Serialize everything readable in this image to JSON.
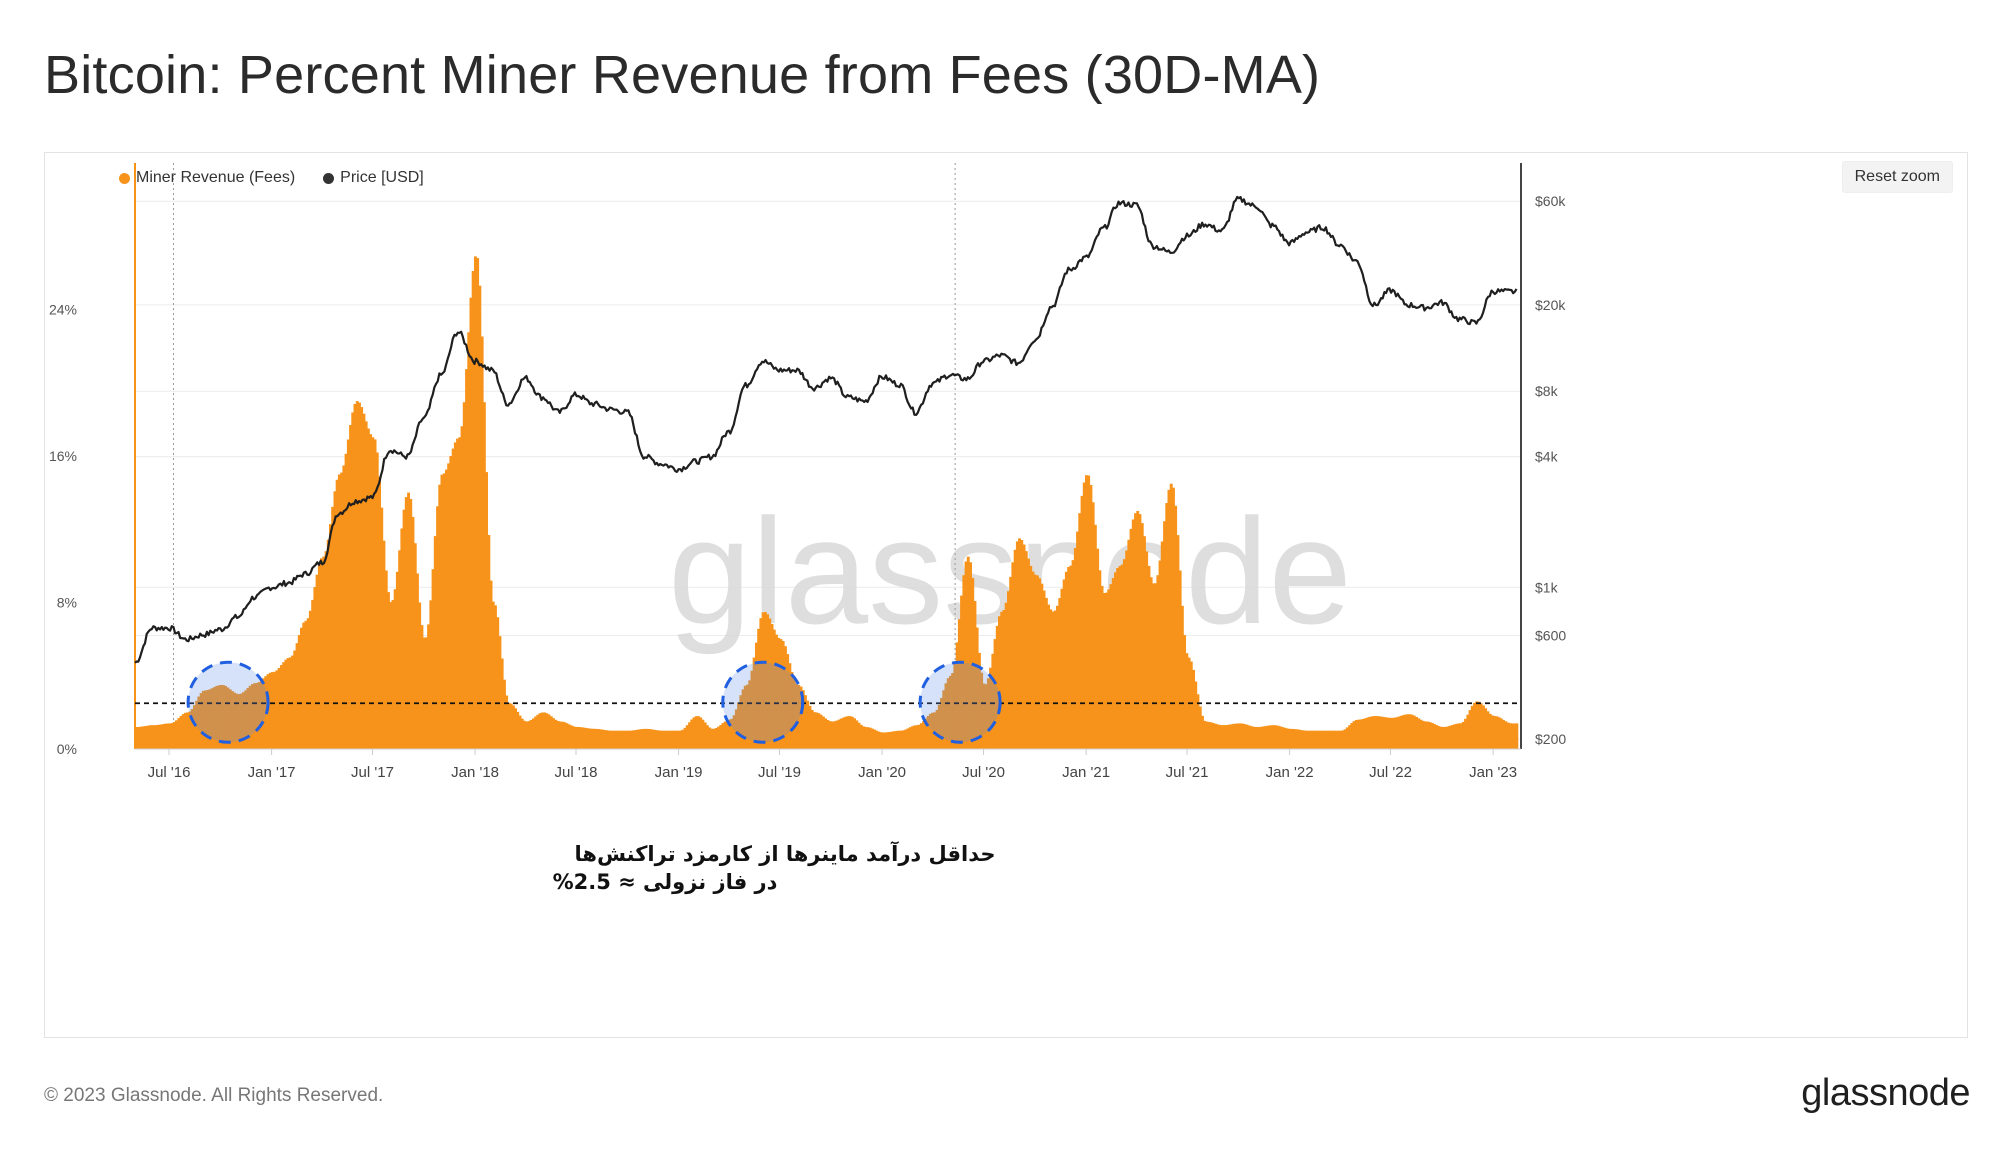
{
  "title": "Bitcoin: Percent Miner Revenue from Fees (30D-MA)",
  "footer": {
    "copyright": "© 2023 Glassnode. All Rights Reserved.",
    "logo": "glassnode"
  },
  "watermark": "glassnode",
  "reset_zoom_label": "Reset zoom",
  "colors": {
    "fees": "#f7931a",
    "price": "#1f1f1f",
    "annotation_circle": "#1f5fe0"
  },
  "chart_data": {
    "type": "area",
    "legend": [
      {
        "name": "Miner Revenue (Fees)",
        "color": "#f7931a"
      },
      {
        "name": "Price [USD]",
        "color": "#333333"
      }
    ],
    "x_tick_labels": [
      "Jul '16",
      "Jan '17",
      "Jul '17",
      "Jan '18",
      "Jul '18",
      "Jan '19",
      "Jul '19",
      "Jan '20",
      "Jul '20",
      "Jan '21",
      "Jul '21",
      "Jan '22",
      "Jul '22",
      "Jan '23"
    ],
    "xlim": [
      "2016-05",
      "2023-02"
    ],
    "y_left": {
      "ticks": [
        0,
        8,
        16,
        24
      ],
      "tick_labels": [
        "0%",
        "8%",
        "16%",
        "24%"
      ],
      "ylim": [
        0,
        32
      ]
    },
    "y_right": {
      "scale": "log",
      "ticks": [
        200,
        600,
        1000,
        4000,
        8000,
        20000,
        60000
      ],
      "tick_labels": [
        "$200",
        "$600",
        "$1k",
        "$4k",
        "$8k",
        "$20k",
        "$60k"
      ],
      "ylim": [
        180,
        90000
      ]
    },
    "series": [
      {
        "name": "Miner Revenue (Fees)",
        "axis": "left",
        "unit": "%",
        "points": [
          [
            "2016-05-01",
            1.2
          ],
          [
            "2016-06-01",
            1.3
          ],
          [
            "2016-07-01",
            1.4
          ],
          [
            "2016-08-01",
            2.0
          ],
          [
            "2016-09-01",
            3.2
          ],
          [
            "2016-10-01",
            3.5
          ],
          [
            "2016-11-01",
            3.0
          ],
          [
            "2016-12-01",
            3.6
          ],
          [
            "2017-01-01",
            4.2
          ],
          [
            "2017-02-01",
            5.0
          ],
          [
            "2017-03-01",
            7.0
          ],
          [
            "2017-04-01",
            10.5
          ],
          [
            "2017-05-01",
            15.0
          ],
          [
            "2017-06-01",
            19.0
          ],
          [
            "2017-07-01",
            17.0
          ],
          [
            "2017-08-01",
            8.0
          ],
          [
            "2017-09-01",
            14.0
          ],
          [
            "2017-10-01",
            6.0
          ],
          [
            "2017-11-01",
            15.0
          ],
          [
            "2017-12-01",
            17.0
          ],
          [
            "2018-01-01",
            27.0
          ],
          [
            "2018-02-01",
            8.0
          ],
          [
            "2018-03-01",
            2.5
          ],
          [
            "2018-04-01",
            1.5
          ],
          [
            "2018-05-01",
            2.0
          ],
          [
            "2018-06-01",
            1.5
          ],
          [
            "2018-07-01",
            1.2
          ],
          [
            "2018-08-01",
            1.1
          ],
          [
            "2018-09-01",
            1.0
          ],
          [
            "2018-10-01",
            1.0
          ],
          [
            "2018-11-01",
            1.1
          ],
          [
            "2018-12-01",
            1.0
          ],
          [
            "2019-01-01",
            1.0
          ],
          [
            "2019-02-01",
            1.8
          ],
          [
            "2019-03-01",
            1.1
          ],
          [
            "2019-04-01",
            1.6
          ],
          [
            "2019-05-01",
            3.5
          ],
          [
            "2019-06-01",
            7.5
          ],
          [
            "2019-07-01",
            6.0
          ],
          [
            "2019-08-01",
            3.5
          ],
          [
            "2019-09-01",
            2.0
          ],
          [
            "2019-10-01",
            1.5
          ],
          [
            "2019-11-01",
            1.8
          ],
          [
            "2019-12-01",
            1.2
          ],
          [
            "2020-01-01",
            0.9
          ],
          [
            "2020-02-01",
            1.0
          ],
          [
            "2020-03-01",
            1.3
          ],
          [
            "2020-04-01",
            2.0
          ],
          [
            "2020-05-01",
            4.0
          ],
          [
            "2020-06-01",
            10.5
          ],
          [
            "2020-07-01",
            3.5
          ],
          [
            "2020-08-01",
            7.5
          ],
          [
            "2020-09-01",
            11.5
          ],
          [
            "2020-10-01",
            9.5
          ],
          [
            "2020-11-01",
            7.5
          ],
          [
            "2020-12-01",
            10.0
          ],
          [
            "2021-01-01",
            15.0
          ],
          [
            "2021-02-01",
            8.5
          ],
          [
            "2021-03-01",
            10.0
          ],
          [
            "2021-04-01",
            13.0
          ],
          [
            "2021-05-01",
            9.0
          ],
          [
            "2021-06-01",
            14.5
          ],
          [
            "2021-07-01",
            5.0
          ],
          [
            "2021-08-01",
            1.5
          ],
          [
            "2021-09-01",
            1.3
          ],
          [
            "2021-10-01",
            1.4
          ],
          [
            "2021-11-01",
            1.2
          ],
          [
            "2021-12-01",
            1.3
          ],
          [
            "2022-01-01",
            1.1
          ],
          [
            "2022-02-01",
            1.0
          ],
          [
            "2022-03-01",
            1.0
          ],
          [
            "2022-04-01",
            1.0
          ],
          [
            "2022-05-01",
            1.6
          ],
          [
            "2022-06-01",
            1.8
          ],
          [
            "2022-07-01",
            1.7
          ],
          [
            "2022-08-01",
            1.9
          ],
          [
            "2022-09-01",
            1.5
          ],
          [
            "2022-10-01",
            1.2
          ],
          [
            "2022-11-01",
            1.4
          ],
          [
            "2022-12-01",
            2.6
          ],
          [
            "2023-01-01",
            1.8
          ],
          [
            "2023-02-01",
            1.4
          ]
        ]
      },
      {
        "name": "Price [USD]",
        "axis": "right",
        "unit": "USD",
        "points": [
          [
            "2016-05-01",
            450
          ],
          [
            "2016-06-01",
            650
          ],
          [
            "2016-07-01",
            650
          ],
          [
            "2016-08-01",
            575
          ],
          [
            "2016-09-01",
            605
          ],
          [
            "2016-10-01",
            640
          ],
          [
            "2016-11-01",
            730
          ],
          [
            "2016-12-01",
            900
          ],
          [
            "2017-01-01",
            1000
          ],
          [
            "2017-02-01",
            1050
          ],
          [
            "2017-03-01",
            1150
          ],
          [
            "2017-04-01",
            1300
          ],
          [
            "2017-05-01",
            2200
          ],
          [
            "2017-06-01",
            2500
          ],
          [
            "2017-07-01",
            2600
          ],
          [
            "2017-08-01",
            4300
          ],
          [
            "2017-09-01",
            4000
          ],
          [
            "2017-10-01",
            6000
          ],
          [
            "2017-11-01",
            9500
          ],
          [
            "2017-12-01",
            15000
          ],
          [
            "2018-01-01",
            11000
          ],
          [
            "2018-02-01",
            10000
          ],
          [
            "2018-03-01",
            7000
          ],
          [
            "2018-04-01",
            9200
          ],
          [
            "2018-05-01",
            7500
          ],
          [
            "2018-06-01",
            6400
          ],
          [
            "2018-07-01",
            7700
          ],
          [
            "2018-08-01",
            7000
          ],
          [
            "2018-09-01",
            6600
          ],
          [
            "2018-10-01",
            6400
          ],
          [
            "2018-11-01",
            4000
          ],
          [
            "2018-12-01",
            3700
          ],
          [
            "2019-01-01",
            3500
          ],
          [
            "2019-02-01",
            3800
          ],
          [
            "2019-03-01",
            4000
          ],
          [
            "2019-04-01",
            5200
          ],
          [
            "2019-05-01",
            8500
          ],
          [
            "2019-06-01",
            11000
          ],
          [
            "2019-07-01",
            10000
          ],
          [
            "2019-08-01",
            10000
          ],
          [
            "2019-09-01",
            8300
          ],
          [
            "2019-10-01",
            9200
          ],
          [
            "2019-11-01",
            7500
          ],
          [
            "2019-12-01",
            7200
          ],
          [
            "2020-01-01",
            9300
          ],
          [
            "2020-02-01",
            8600
          ],
          [
            "2020-03-01",
            6400
          ],
          [
            "2020-04-01",
            8700
          ],
          [
            "2020-05-01",
            9500
          ],
          [
            "2020-06-01",
            9100
          ],
          [
            "2020-07-01",
            11000
          ],
          [
            "2020-08-01",
            11700
          ],
          [
            "2020-09-01",
            10800
          ],
          [
            "2020-10-01",
            13800
          ],
          [
            "2020-11-01",
            19700
          ],
          [
            "2020-12-01",
            29000
          ],
          [
            "2021-01-01",
            33000
          ],
          [
            "2021-02-01",
            45000
          ],
          [
            "2021-03-01",
            58800
          ],
          [
            "2021-04-01",
            57700
          ],
          [
            "2021-05-01",
            37300
          ],
          [
            "2021-06-01",
            35000
          ],
          [
            "2021-07-01",
            41500
          ],
          [
            "2021-08-01",
            47100
          ],
          [
            "2021-09-01",
            43800
          ],
          [
            "2021-10-01",
            61300
          ],
          [
            "2021-11-01",
            57000
          ],
          [
            "2021-12-01",
            46300
          ],
          [
            "2022-01-01",
            38500
          ],
          [
            "2022-02-01",
            43200
          ],
          [
            "2022-03-01",
            45500
          ],
          [
            "2022-04-01",
            37700
          ],
          [
            "2022-05-01",
            31800
          ],
          [
            "2022-06-01",
            19900
          ],
          [
            "2022-07-01",
            23300
          ],
          [
            "2022-08-01",
            20000
          ],
          [
            "2022-09-01",
            19400
          ],
          [
            "2022-10-01",
            20500
          ],
          [
            "2022-11-01",
            17200
          ],
          [
            "2022-12-01",
            16500
          ],
          [
            "2023-01-01",
            23100
          ],
          [
            "2023-02-01",
            23000
          ]
        ]
      }
    ],
    "reference_line": {
      "value": 2.5,
      "axis": "left",
      "style": "dashed"
    },
    "markers": [
      {
        "type": "vertical-dotted",
        "x": "2016-07-09"
      },
      {
        "type": "vertical-dotted",
        "x": "2020-05-11"
      },
      {
        "type": "circle",
        "x": "2016-10-15",
        "y": 2.5
      },
      {
        "type": "circle",
        "x": "2019-06-01",
        "y": 2.5
      },
      {
        "type": "circle",
        "x": "2020-05-20",
        "y": 2.5
      }
    ],
    "annotations": [
      "حداقل درآمد ماینرها از کارمزد تراکنش‌ها",
      "در فاز نزولی ≈ 2.5%"
    ]
  }
}
